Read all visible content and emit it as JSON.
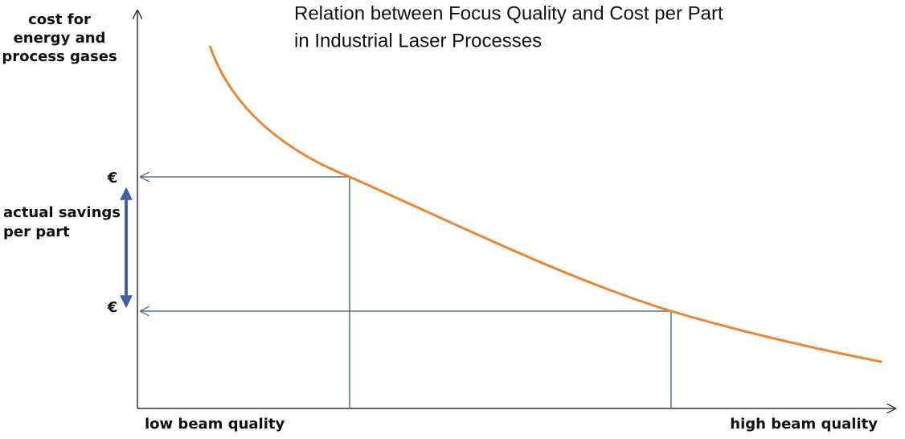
{
  "title": [
    "Relation between Focus Quality and Cost per Part",
    "in Industrial Laser Processes"
  ],
  "y_axis_label": [
    "cost for",
    "energy and",
    "process gases"
  ],
  "markers": [
    "€",
    "€"
  ],
  "savings_label": [
    "actual savings",
    "per part"
  ],
  "x_axis_labels": {
    "low": "low beam quality",
    "high": "high beam quality"
  }
}
